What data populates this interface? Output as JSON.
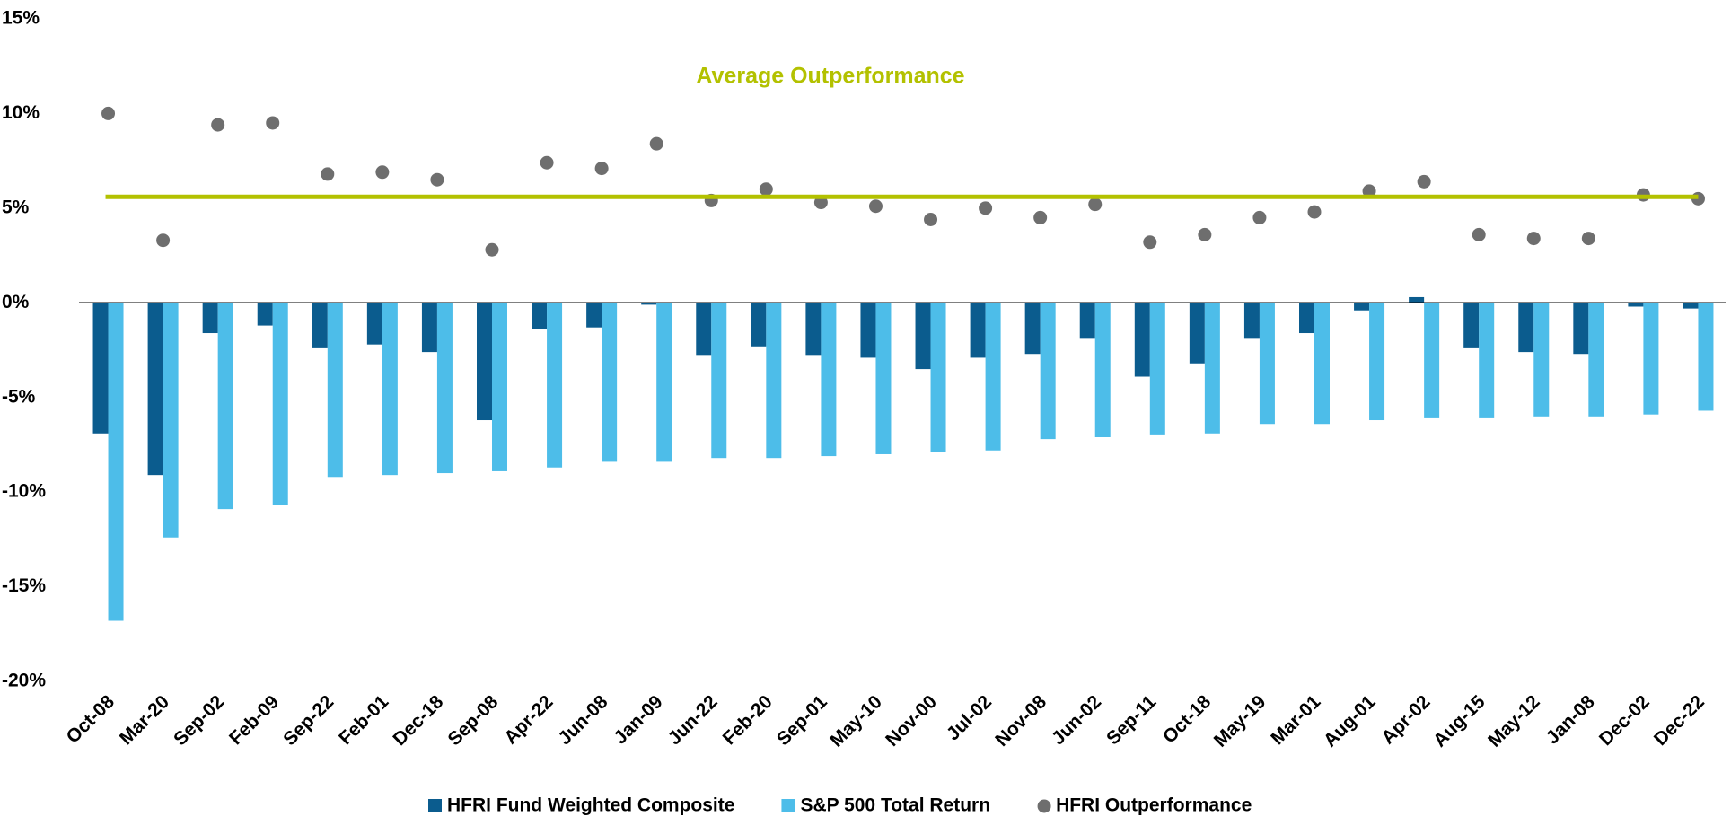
{
  "chart_data": {
    "type": "bar",
    "categories": [
      "Oct-08",
      "Mar-20",
      "Sep-02",
      "Feb-09",
      "Sep-22",
      "Feb-01",
      "Dec-18",
      "Sep-08",
      "Apr-22",
      "Jun-08",
      "Jan-09",
      "Jun-22",
      "Feb-20",
      "Sep-01",
      "May-10",
      "Nov-00",
      "Jul-02",
      "Nov-08",
      "Jun-02",
      "Sep-11",
      "Oct-18",
      "May-19",
      "Mar-01",
      "Aug-01",
      "Apr-02",
      "Aug-15",
      "May-12",
      "Jan-08",
      "Dec-02",
      "Dec-22"
    ],
    "series": [
      {
        "name": "HFRI Fund Weighted Composite",
        "color": "#0b5c8e",
        "mark": "bar",
        "values": [
          -6.9,
          -9.1,
          -1.6,
          -1.2,
          -2.4,
          -2.2,
          -2.6,
          -6.2,
          -1.4,
          -1.3,
          -0.1,
          -2.8,
          -2.3,
          -2.8,
          -2.9,
          -3.5,
          -2.9,
          -2.7,
          -1.9,
          -3.9,
          -3.2,
          -1.9,
          -1.6,
          -0.4,
          0.3,
          -2.4,
          -2.6,
          -2.7,
          -0.2,
          -0.3
        ]
      },
      {
        "name": "S&P 500 Total Return",
        "color": "#4dbde9",
        "mark": "bar",
        "values": [
          -16.8,
          -12.4,
          -10.9,
          -10.7,
          -9.2,
          -9.1,
          -9.0,
          -8.9,
          -8.7,
          -8.4,
          -8.4,
          -8.2,
          -8.2,
          -8.1,
          -8.0,
          -7.9,
          -7.8,
          -7.2,
          -7.1,
          -7.0,
          -6.9,
          -6.4,
          -6.4,
          -6.2,
          -6.1,
          -6.1,
          -6.0,
          -6.0,
          -5.9,
          -5.7
        ]
      },
      {
        "name": "HFRI Outperformance",
        "color": "#6e6e6e",
        "mark": "dot",
        "values": [
          10.0,
          3.3,
          9.4,
          9.5,
          6.8,
          6.9,
          6.5,
          2.8,
          7.4,
          7.1,
          8.4,
          5.4,
          6.0,
          5.3,
          5.1,
          4.4,
          5.0,
          4.5,
          5.2,
          3.2,
          3.6,
          4.5,
          4.8,
          5.9,
          6.4,
          3.6,
          3.4,
          3.4,
          5.7,
          5.5
        ]
      }
    ],
    "annotation": {
      "text": "Average Outperformance",
      "value": 5.6,
      "color": "#b3c100"
    },
    "ylim": [
      -20,
      15
    ],
    "yticks": [
      {
        "value": -20,
        "label": "-20%"
      },
      {
        "value": -15,
        "label": "-15%"
      },
      {
        "value": -10,
        "label": "-10%"
      },
      {
        "value": -5,
        "label": "-5%"
      },
      {
        "value": 0,
        "label": "0%"
      },
      {
        "value": 5,
        "label": "5%"
      },
      {
        "value": 10,
        "label": "10%"
      },
      {
        "value": 15,
        "label": "15%"
      }
    ],
    "legend": "bottom"
  }
}
